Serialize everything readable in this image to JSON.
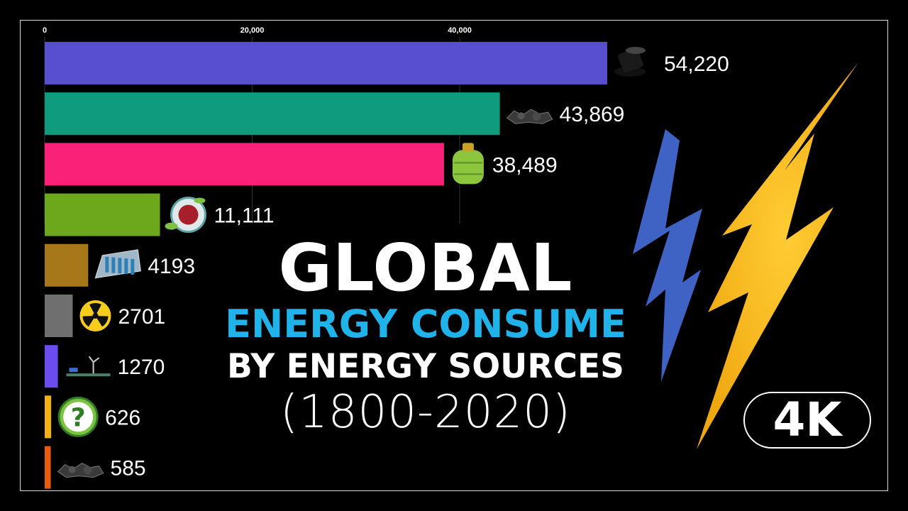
{
  "title": {
    "line1": "GLOBAL",
    "line2": "ENERGY CONSUME",
    "line3": "BY ENERGY SOURCES",
    "line4": "(1800-2020)"
  },
  "badge": "4K",
  "colors": {
    "title_accent": "#1fb3ea",
    "bolt_yellow": "#f5b51c",
    "bolt_blue": "#3f63c4"
  },
  "chart_data": {
    "type": "bar",
    "orientation": "horizontal",
    "axis": {
      "min": 0,
      "max": 54220,
      "ticks": [
        "0",
        "20,000",
        "40,000"
      ],
      "tick_values": [
        0,
        20000,
        40000
      ],
      "position": "top"
    },
    "bars": [
      {
        "value": 54220,
        "label": "54,220",
        "color": "#574fcf",
        "icon": "oil-barrel-icon"
      },
      {
        "value": 43869,
        "label": "43,869",
        "color": "#0f9c7e",
        "icon": "coal-icon"
      },
      {
        "value": 38489,
        "label": "38,489",
        "color": "#fa2178",
        "icon": "gas-tank-icon"
      },
      {
        "value": 11111,
        "label": "11,111",
        "color": "#6da81c",
        "icon": "biofuel-icon"
      },
      {
        "value": 4193,
        "label": "4193",
        "color": "#a7781a",
        "icon": "dam-icon"
      },
      {
        "value": 2701,
        "label": "2701",
        "color": "#6f6f6f",
        "icon": "nuclear-icon"
      },
      {
        "value": 1270,
        "label": "1270",
        "color": "#6a4cf0",
        "icon": "wind-turbine-icon"
      },
      {
        "value": 626,
        "label": "626",
        "color": "#f2b217",
        "icon": "question-icon"
      },
      {
        "value": 585,
        "label": "585",
        "color": "#ea5b0c",
        "icon": "coal-icon"
      }
    ]
  }
}
